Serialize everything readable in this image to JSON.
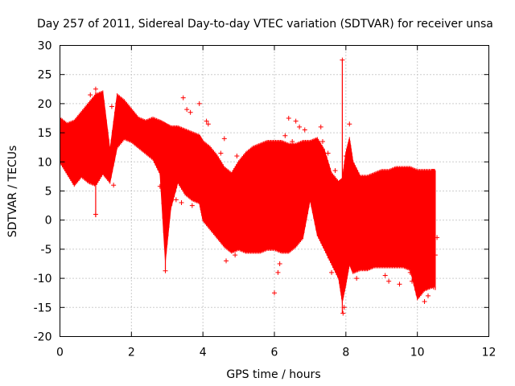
{
  "chart_data": {
    "type": "line",
    "title": "Day 257 of 2011, Sidereal Day-to-day VTEC variation (SDTVAR) for receiver unsa",
    "xlabel": "GPS time / hours",
    "ylabel": "SDTVAR / TECUs",
    "xlim": [
      0,
      12
    ],
    "ylim": [
      -20,
      30
    ],
    "xticks": [
      0,
      2,
      4,
      6,
      8,
      10,
      12
    ],
    "yticks": [
      -20,
      -15,
      -10,
      -5,
      0,
      5,
      10,
      15,
      20,
      25,
      30
    ],
    "grid": true,
    "series": [
      {
        "name": "SDTVAR",
        "color": "#ff0000",
        "envelope_x": [
          0.0,
          0.2,
          0.4,
          0.6,
          0.8,
          1.0,
          1.2,
          1.4,
          1.6,
          1.8,
          2.0,
          2.2,
          2.4,
          2.6,
          2.8,
          2.95,
          3.1,
          3.3,
          3.5,
          3.7,
          3.9,
          4.0,
          4.2,
          4.4,
          4.6,
          4.8,
          5.0,
          5.2,
          5.4,
          5.6,
          5.8,
          6.0,
          6.2,
          6.4,
          6.6,
          6.8,
          7.0,
          7.2,
          7.4,
          7.6,
          7.8,
          7.9,
          8.0,
          8.1,
          8.2,
          8.4,
          8.6,
          8.8,
          9.0,
          9.2,
          9.4,
          9.6,
          9.8,
          10.0,
          10.2,
          10.4,
          10.5
        ],
        "upper": [
          17.5,
          16.5,
          17.0,
          18.5,
          20.0,
          21.5,
          22.0,
          12.0,
          21.5,
          20.5,
          19.0,
          17.5,
          17.0,
          17.5,
          17.0,
          16.5,
          16.0,
          16.0,
          15.5,
          15.0,
          14.5,
          13.5,
          12.5,
          11.0,
          9.0,
          8.0,
          10.0,
          11.5,
          12.5,
          13.0,
          13.5,
          13.5,
          13.5,
          13.0,
          13.0,
          13.5,
          13.5,
          14.0,
          12.0,
          8.0,
          6.5,
          7.0,
          11.5,
          14.0,
          10.0,
          7.5,
          7.5,
          8.0,
          8.5,
          8.5,
          9.0,
          9.0,
          9.0,
          8.5,
          8.5,
          8.5,
          8.5
        ],
        "lower": [
          10.0,
          8.0,
          6.0,
          7.5,
          6.5,
          6.0,
          8.0,
          6.5,
          12.5,
          14.0,
          13.5,
          12.5,
          11.5,
          10.5,
          8.0,
          -7.0,
          2.0,
          6.5,
          4.5,
          3.5,
          3.0,
          0.0,
          -1.5,
          -3.0,
          -4.5,
          -5.5,
          -5.0,
          -5.5,
          -5.5,
          -5.5,
          -5.0,
          -5.0,
          -5.5,
          -5.5,
          -4.5,
          -3.0,
          3.5,
          -2.5,
          -5.0,
          -7.5,
          -10.0,
          -14.0,
          -11.0,
          -7.5,
          -9.0,
          -8.5,
          -8.5,
          -8.0,
          -8.0,
          -8.0,
          -8.0,
          -8.0,
          -8.5,
          -13.5,
          -12.0,
          -11.5,
          -11.0
        ],
        "outliers": [
          [
            0.45,
            16.0
          ],
          [
            0.85,
            21.5
          ],
          [
            0.95,
            19.0
          ],
          [
            1.0,
            22.5
          ],
          [
            1.05,
            7.5
          ],
          [
            1.0,
            1.0
          ],
          [
            1.45,
            19.5
          ],
          [
            1.5,
            6.0
          ],
          [
            2.8,
            5.8
          ],
          [
            2.95,
            -8.7
          ],
          [
            3.0,
            4.5
          ],
          [
            3.1,
            13.5
          ],
          [
            3.15,
            12.0
          ],
          [
            3.25,
            3.5
          ],
          [
            3.4,
            3.0
          ],
          [
            3.45,
            21.0
          ],
          [
            3.55,
            19.0
          ],
          [
            3.65,
            18.5
          ],
          [
            3.7,
            2.5
          ],
          [
            3.75,
            5.0
          ],
          [
            3.9,
            20.0
          ],
          [
            3.95,
            3.5
          ],
          [
            4.1,
            17.0
          ],
          [
            4.15,
            16.5
          ],
          [
            4.5,
            11.5
          ],
          [
            4.6,
            14.0
          ],
          [
            4.65,
            -7.0
          ],
          [
            4.85,
            -2.0
          ],
          [
            4.9,
            -6.0
          ],
          [
            4.95,
            11.0
          ],
          [
            6.0,
            -12.5
          ],
          [
            6.1,
            -9.0
          ],
          [
            6.15,
            -7.5
          ],
          [
            6.3,
            14.5
          ],
          [
            6.4,
            17.5
          ],
          [
            6.5,
            13.5
          ],
          [
            6.6,
            17.0
          ],
          [
            6.7,
            16.0
          ],
          [
            6.85,
            15.5
          ],
          [
            7.3,
            16.0
          ],
          [
            7.35,
            13.5
          ],
          [
            7.5,
            11.5
          ],
          [
            7.55,
            -6.5
          ],
          [
            7.6,
            -9.0
          ],
          [
            7.7,
            8.5
          ],
          [
            7.85,
            -10.0
          ],
          [
            7.9,
            27.5
          ],
          [
            7.92,
            -16.0
          ],
          [
            7.95,
            -15.0
          ],
          [
            8.0,
            11.0
          ],
          [
            8.1,
            16.5
          ],
          [
            8.3,
            -10.0
          ],
          [
            9.1,
            -9.5
          ],
          [
            9.2,
            -10.5
          ],
          [
            9.5,
            -11.0
          ],
          [
            9.8,
            -9.0
          ],
          [
            9.85,
            -10.5
          ],
          [
            10.2,
            -14.0
          ],
          [
            10.3,
            -13.0
          ],
          [
            10.45,
            -11.5
          ],
          [
            10.5,
            -6.0
          ],
          [
            10.55,
            -3.0
          ]
        ],
        "spikes": [
          [
            1.0,
            0.5,
            22.0
          ],
          [
            2.95,
            -8.5,
            16.5
          ],
          [
            7.9,
            -16.0,
            27.5
          ],
          [
            10.5,
            -12.0,
            8.5
          ]
        ]
      }
    ]
  }
}
